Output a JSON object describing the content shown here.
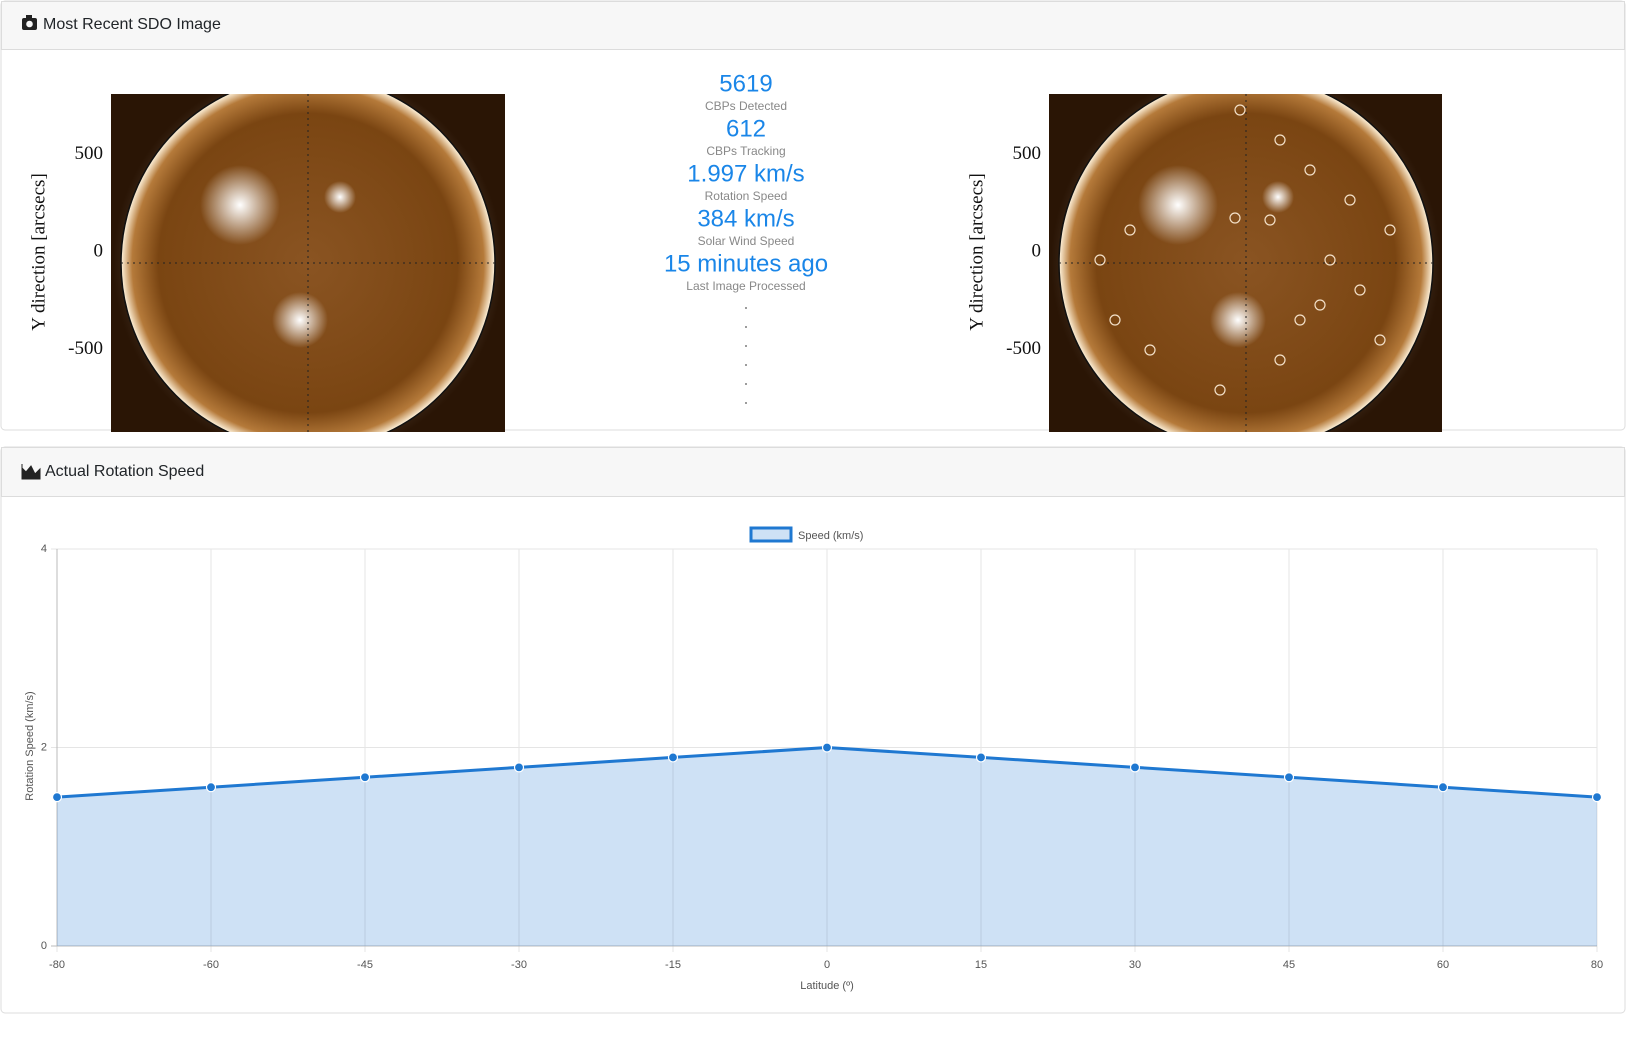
{
  "sdo_panel": {
    "title": "Most Recent SDO Image",
    "stats": [
      {
        "value": "5619",
        "label": "CBPs Detected"
      },
      {
        "value": "612",
        "label": "CBPs Tracking"
      },
      {
        "value": "1.997 km/s",
        "label": "Rotation Speed"
      },
      {
        "value": "384 km/s",
        "label": "Solar Wind Speed"
      },
      {
        "value": "15 minutes ago",
        "label": "Last Image Processed"
      }
    ],
    "images": [
      {
        "ylabel": "Y direction [arcsecs]",
        "yticks": [
          500,
          0,
          -500
        ]
      },
      {
        "ylabel": "Y direction [arcsecs]",
        "yticks": [
          500,
          0,
          -500
        ]
      }
    ]
  },
  "chart_panel": {
    "title": "Actual Rotation Speed"
  },
  "chart_data": {
    "type": "line",
    "x_label": "Latitude (º)",
    "y_label": "Rotation Speed (km/s)",
    "categories": [
      "-80",
      "-60",
      "-45",
      "-30",
      "-15",
      "0",
      "15",
      "30",
      "45",
      "60",
      "80"
    ],
    "series": [
      {
        "name": "Speed (km/s)",
        "color": "#1f78d1",
        "values": [
          1.5,
          1.6,
          1.7,
          1.8,
          1.9,
          2.0,
          1.9,
          1.8,
          1.7,
          1.6,
          1.5
        ]
      }
    ],
    "ylim": [
      0,
      4
    ],
    "yticks": [
      0,
      2,
      4
    ],
    "grid": true,
    "fill": true,
    "legend": "top"
  }
}
